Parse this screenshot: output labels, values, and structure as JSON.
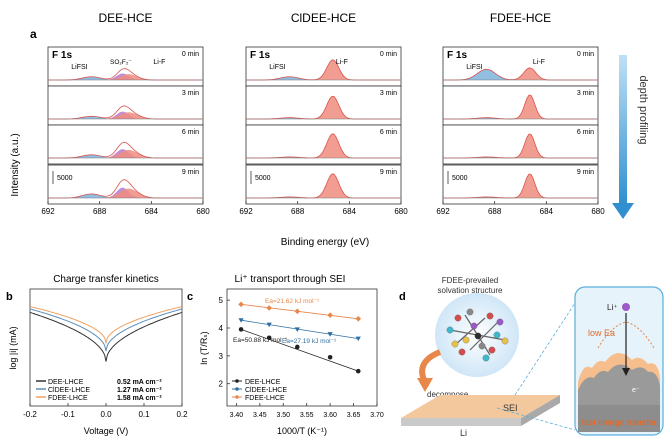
{
  "panel_a": {
    "label": "a",
    "ylabel": "Intensity (a.u.)",
    "xlabel": "Binding energy (eV)",
    "xticks": [
      "692",
      "688",
      "684",
      "680"
    ],
    "depth_label": "depth profiling",
    "scale_label": "5000",
    "columns": [
      {
        "title": "DEE-HCE",
        "f1s": "F 1s",
        "peak_labels": [
          "LiFSI",
          "SO₂F₂⁻",
          "Li-F"
        ],
        "times": [
          "0 min",
          "3 min",
          "6 min",
          "9 min"
        ]
      },
      {
        "title": "ClDEE-HCE",
        "f1s": "F 1s",
        "peak_labels": [
          "LiFSI",
          "Li-F"
        ],
        "times": [
          "0 min",
          "3 min",
          "6 min",
          "9 min"
        ]
      },
      {
        "title": "FDEE-HCE",
        "f1s": "F 1s",
        "peak_labels": [
          "LiFSI",
          "Li-F"
        ],
        "times": [
          "0 min",
          "3 min",
          "6 min",
          "9 min"
        ]
      }
    ]
  },
  "panel_b": {
    "label": "b",
    "title": "Charge transfer kinetics",
    "xlabel": "Voltage (V)",
    "ylabel": "log |i| (mA)",
    "xticks": [
      "-0.2",
      "-0.1",
      "0.0",
      "0.1",
      "0.2"
    ],
    "legend": [
      {
        "name": "DEE-LHCE",
        "value": "0.52 mA cm⁻²",
        "color": "#333333"
      },
      {
        "name": "ClDEE-LHCE",
        "value": "1.27 mA cm⁻²",
        "color": "#5b8db8"
      },
      {
        "name": "FDEE-LHCE",
        "value": "1.58 mA cm⁻²",
        "color": "#f0a060"
      }
    ]
  },
  "panel_c": {
    "label": "c",
    "title": "Li⁺ transport through SEI",
    "xlabel": "1000/T (K⁻¹)",
    "ylabel": "ln (T/Rₛ)",
    "xticks": [
      "3.40",
      "3.45",
      "3.50",
      "3.55",
      "3.60",
      "3.65",
      "3.70"
    ],
    "yticks": [
      "1",
      "2",
      "3",
      "4",
      "5"
    ],
    "ea_labels": [
      "Ea=21.62 kJ mol⁻¹",
      "Ea=27.19 kJ mol⁻¹",
      "Ea=50.88 kJ mol⁻¹"
    ],
    "legend": [
      "DEE-LHCE",
      "ClDEE-LHCE",
      "FDEE-LHCE"
    ]
  },
  "panel_d": {
    "label": "d",
    "caption_line1": "FDEE-prevailed",
    "caption_line2": "solvation structure",
    "decompose": "decompose",
    "sei": "SEI",
    "li": "Li",
    "li_ion": "Li⁺",
    "low_ea": "low Ea",
    "electron": "e⁻",
    "fast": "fast charge transfer"
  },
  "chart_data": [
    {
      "type": "line",
      "title": "Charge transfer kinetics",
      "xlabel": "Voltage (V)",
      "ylabel": "log |i| (mA)",
      "xlim": [
        -0.2,
        0.2
      ],
      "series": [
        {
          "name": "DEE-LHCE",
          "exchange_current": "0.52 mA cm-2"
        },
        {
          "name": "ClDEE-LHCE",
          "exchange_current": "1.27 mA cm-2"
        },
        {
          "name": "FDEE-LHCE",
          "exchange_current": "1.58 mA cm-2"
        }
      ]
    },
    {
      "type": "scatter",
      "title": "Li+ transport through SEI",
      "xlabel": "1000/T (K-1)",
      "ylabel": "ln (T/Rs)",
      "xlim": [
        3.38,
        3.7
      ],
      "ylim": [
        1.2,
        5.4
      ],
      "x": [
        3.41,
        3.47,
        3.53,
        3.6,
        3.66
      ],
      "series": [
        {
          "name": "FDEE-LHCE",
          "Ea": "21.62 kJ mol-1",
          "values": [
            4.85,
            4.72,
            4.6,
            4.46,
            4.33
          ]
        },
        {
          "name": "ClDEE-LHCE",
          "Ea": "27.19 kJ mol-1",
          "values": [
            4.28,
            4.12,
            3.95,
            3.78,
            3.62
          ]
        },
        {
          "name": "DEE-LHCE",
          "Ea": "50.88 kJ mol-1",
          "values": [
            3.95,
            3.65,
            3.32,
            2.95,
            2.45
          ]
        }
      ]
    }
  ]
}
